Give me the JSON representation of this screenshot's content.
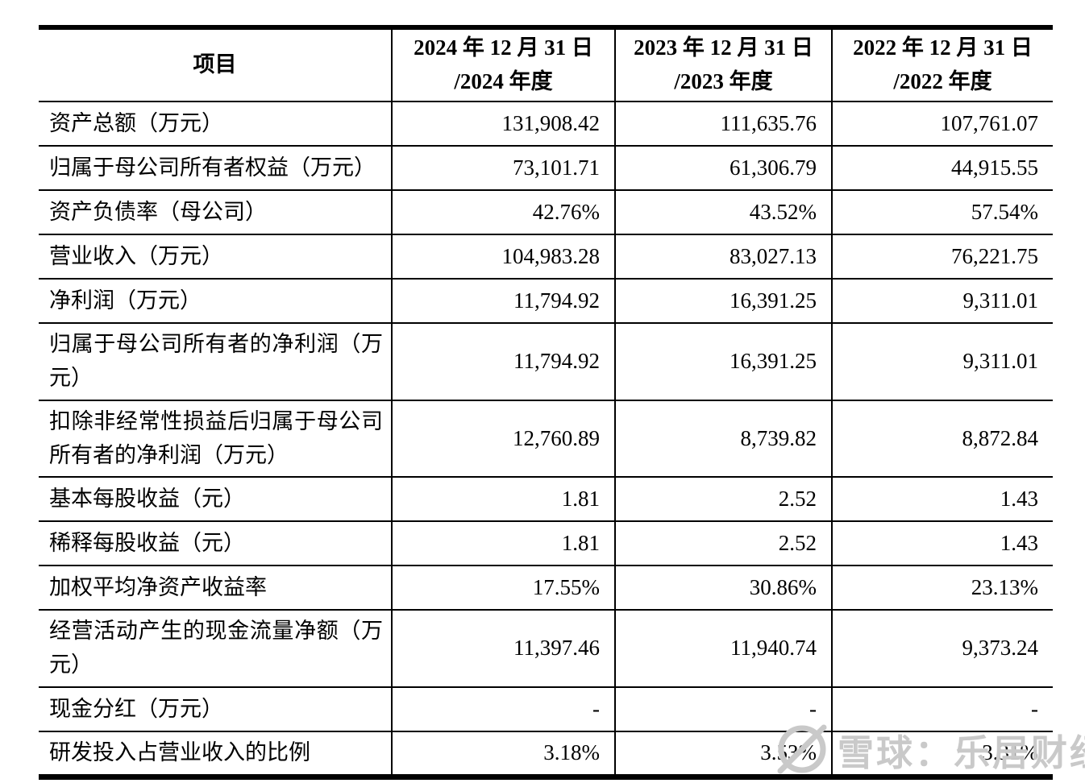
{
  "table": {
    "header": {
      "item_label": "项目",
      "periods": [
        {
          "line1": "2024 年 12 月 31 日",
          "line2": "/2024 年度"
        },
        {
          "line1": "2023 年 12 月 31 日",
          "line2": "/2023 年度"
        },
        {
          "line1": "2022 年 12 月 31 日",
          "line2": "/2022 年度"
        }
      ]
    },
    "rows": [
      {
        "label": "资产总额（万元）",
        "values": [
          "131,908.42",
          "111,635.76",
          "107,761.07"
        ]
      },
      {
        "label": "归属于母公司所有者权益（万元）",
        "values": [
          "73,101.71",
          "61,306.79",
          "44,915.55"
        ]
      },
      {
        "label": "资产负债率（母公司）",
        "values": [
          "42.76%",
          "43.52%",
          "57.54%"
        ]
      },
      {
        "label": "营业收入（万元）",
        "values": [
          "104,983.28",
          "83,027.13",
          "76,221.75"
        ]
      },
      {
        "label": "净利润（万元）",
        "values": [
          "11,794.92",
          "16,391.25",
          "9,311.01"
        ]
      },
      {
        "label": "归属于母公司所有者的净利润（万元）",
        "values": [
          "11,794.92",
          "16,391.25",
          "9,311.01"
        ]
      },
      {
        "label": "扣除非经常性损益后归属于母公司所有者的净利润（万元）",
        "values": [
          "12,760.89",
          "8,739.82",
          "8,872.84"
        ]
      },
      {
        "label": "基本每股收益（元）",
        "values": [
          "1.81",
          "2.52",
          "1.43"
        ]
      },
      {
        "label": "稀释每股收益（元）",
        "values": [
          "1.81",
          "2.52",
          "1.43"
        ]
      },
      {
        "label": "加权平均净资产收益率",
        "values": [
          "17.55%",
          "30.86%",
          "23.13%"
        ]
      },
      {
        "label": "经营活动产生的现金流量净额（万元）",
        "values": [
          "11,397.46",
          "11,940.74",
          "9,373.24"
        ]
      },
      {
        "label": "现金分红（万元）",
        "values": [
          "-",
          "-",
          "-"
        ]
      },
      {
        "label": "研发投入占营业收入的比例",
        "values": [
          "3.18%",
          "3.53%",
          "3.31%"
        ]
      }
    ]
  },
  "watermark": {
    "text": "雪球：乐居财经",
    "icon": "xueqiu-logo-icon"
  },
  "colors": {
    "border": "#000000",
    "watermark": "#c9c9c9"
  }
}
